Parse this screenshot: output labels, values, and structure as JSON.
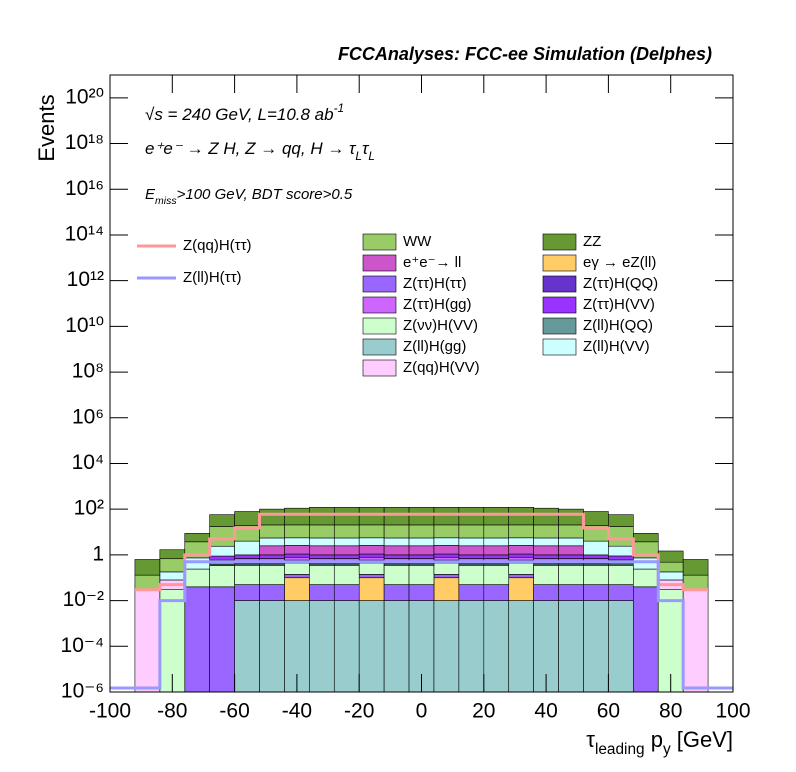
{
  "chart_data": {
    "type": "stacked_histogram",
    "title": "FCCAnalyses: FCC-ee Simulation (Delphes)",
    "annotations": [
      [
        {
          "text": "√s = 240 GeV, L=10.8 ab"
        },
        {
          "text": "-1",
          "style": "sup"
        }
      ],
      [
        {
          "text": "e⁺e⁻ → Z H, Z  → qq, H  → τ"
        },
        {
          "text": "L",
          "style": "sub"
        },
        {
          "text": "τ"
        },
        {
          "text": "L",
          "style": "sub"
        }
      ],
      [
        {
          "text": "E"
        },
        {
          "text": "miss",
          "style": "sub"
        },
        {
          "text": ">100 GeV, BDT score>0.5"
        }
      ]
    ],
    "x_label": [
      {
        "text": "τ"
      },
      {
        "text": "leading",
        "style": "sub"
      },
      {
        "text": " p"
      },
      {
        "text": "y",
        "style": "sub"
      },
      {
        "text": " [GeV]"
      }
    ],
    "y_label": "Events",
    "log_y": true,
    "bins": [
      -100,
      -92,
      -84,
      -76,
      -68,
      -60,
      -52,
      -44,
      -36,
      -28,
      -20,
      -12,
      -4,
      4,
      12,
      20,
      28,
      36,
      44,
      52,
      60,
      68,
      76,
      84,
      92,
      100
    ],
    "xlim": [
      -100,
      100
    ],
    "xticks": [
      -100,
      -80,
      -60,
      -40,
      -20,
      0,
      20,
      40,
      60,
      80,
      100
    ],
    "ylim": [
      1e-06,
      1e+21
    ],
    "yticks": [
      {
        "value": 1e-06,
        "label": "10⁻⁶"
      },
      {
        "value": 0.0001,
        "label": "10⁻⁴"
      },
      {
        "value": 0.01,
        "label": "10⁻²"
      },
      1,
      {
        "value": 100.0,
        "label": "10²"
      },
      {
        "value": 10000.0,
        "label": "10⁴"
      },
      {
        "value": 1000000.0,
        "label": "10⁶"
      },
      {
        "value": 100000000.0,
        "label": "10⁸"
      },
      {
        "value": 10000000000.0,
        "label": "10¹⁰"
      },
      {
        "value": 1000000000000.0,
        "label": "10¹²"
      },
      {
        "value": 100000000000000.0,
        "label": "10¹⁴"
      },
      {
        "value": 1e+16,
        "label": "10¹⁶"
      },
      {
        "value": 1e+18,
        "label": "10¹⁸"
      },
      {
        "value": 1e+20,
        "label": "10²⁰"
      }
    ],
    "series": [
      {
        "name": "Z(ll)H(gg)",
        "color": "#99cccc",
        "values": [
          0,
          0,
          0,
          0,
          0,
          0.01,
          0.01,
          0.01,
          0.01,
          0.01,
          0.01,
          0.01,
          0.01,
          0.01,
          0.01,
          0.01,
          0.01,
          0.01,
          0.01,
          0.01,
          0.01,
          0,
          0,
          0,
          0
        ]
      },
      {
        "name": "eγ → eZ(ll)",
        "color": "#ffcc66",
        "values": [
          0,
          0,
          0,
          0,
          0,
          0,
          0,
          0.09,
          0,
          0,
          0.09,
          0,
          0,
          0.09,
          0,
          0,
          0.09,
          0,
          0,
          0,
          0,
          0,
          0,
          0,
          0
        ]
      },
      {
        "name": "Z(ττ)H(ττ)",
        "color": "#9966ff",
        "values": [
          0,
          0,
          0,
          0.04,
          0.04,
          0.04,
          0.04,
          0.04,
          0.04,
          0.04,
          0.04,
          0.04,
          0.04,
          0.04,
          0.04,
          0.04,
          0.04,
          0.04,
          0.04,
          0.04,
          0.04,
          0.04,
          0,
          0,
          0
        ]
      },
      {
        "name": "Z(νν)H(VV)",
        "color": "#ccffcc",
        "values": [
          0,
          0,
          0.03,
          0.2,
          0.3,
          0.3,
          0.3,
          0.3,
          0.3,
          0.3,
          0.3,
          0.3,
          0.3,
          0.3,
          0.3,
          0.3,
          0.3,
          0.3,
          0.3,
          0.3,
          0.3,
          0.2,
          0.03,
          0,
          0
        ]
      },
      {
        "name": "Z(qq)H(VV)",
        "color": "#ffccff",
        "values": [
          0,
          0.03,
          0.05,
          0,
          0,
          0,
          0,
          0,
          0,
          0,
          0,
          0,
          0,
          0,
          0,
          0,
          0,
          0,
          0,
          0,
          0,
          0,
          0.05,
          0.03,
          0
        ]
      },
      {
        "name": "Z(ll)H(QQ)",
        "color": "#669999",
        "values": [
          0,
          0,
          0,
          0,
          0.05,
          0.05,
          0.05,
          0.05,
          0.05,
          0.05,
          0.05,
          0.05,
          0.05,
          0.05,
          0.05,
          0.05,
          0.05,
          0.05,
          0.05,
          0.05,
          0.05,
          0,
          0,
          0,
          0
        ]
      },
      {
        "name": "Z(ττ)H(QQ)",
        "color": "#6633cc",
        "values": [
          0,
          0,
          0,
          0,
          0,
          0.1,
          0.1,
          0.1,
          0.1,
          0.1,
          0.1,
          0.1,
          0.1,
          0.1,
          0.1,
          0.1,
          0.1,
          0.1,
          0.1,
          0.1,
          0,
          0,
          0,
          0,
          0
        ]
      },
      {
        "name": "Z(ττ)H(gg)",
        "color": "#cc66ff",
        "values": [
          0,
          0,
          0,
          0,
          0.2,
          0.2,
          0.2,
          0.2,
          0.2,
          0.2,
          0.2,
          0.2,
          0.2,
          0.2,
          0.2,
          0.2,
          0.2,
          0.2,
          0.2,
          0.2,
          0.2,
          0,
          0,
          0,
          0
        ]
      },
      {
        "name": "Z(ττ)H(VV)",
        "color": "#9933ff",
        "values": [
          0,
          0,
          0,
          0,
          0.3,
          0.3,
          0.3,
          0.3,
          0.3,
          0.3,
          0.3,
          0.3,
          0.3,
          0.3,
          0.3,
          0.3,
          0.3,
          0.3,
          0.3,
          0.3,
          0.3,
          0,
          0,
          0,
          0
        ]
      },
      {
        "name": "e⁺e⁻→ ll",
        "color": "#cc55cc",
        "values": [
          0,
          0,
          0,
          0,
          0,
          0,
          1.5,
          1.5,
          1.5,
          1.5,
          1.5,
          1.5,
          1.5,
          1.5,
          1.5,
          1.5,
          1.5,
          1.5,
          1.5,
          0,
          0,
          0,
          0,
          0,
          0
        ]
      },
      {
        "name": "Z(ll)H(VV)",
        "color": "#ccffff",
        "values": [
          0,
          0,
          0.1,
          0.5,
          1.5,
          3,
          3,
          3,
          3,
          3,
          3,
          3,
          3,
          3,
          3,
          3,
          3,
          3,
          3,
          3,
          1.5,
          0.5,
          0.1,
          0,
          0
        ]
      },
      {
        "name": "WW",
        "color": "#99cc66",
        "values": [
          0,
          0.1,
          0.5,
          3,
          15,
          15,
          15,
          15,
          15,
          15,
          15,
          15,
          15,
          15,
          15,
          15,
          15,
          15,
          15,
          15,
          15,
          3,
          0.3,
          0.1,
          0
        ]
      },
      {
        "name": "ZZ",
        "color": "#669933",
        "values": [
          0,
          0.5,
          1,
          5,
          40,
          60,
          80,
          90,
          100,
          100,
          100,
          100,
          100,
          100,
          100,
          100,
          100,
          90,
          80,
          60,
          40,
          5,
          1,
          0.5,
          0
        ]
      }
    ],
    "lines": [
      {
        "name": "Z(qq)H(ττ)",
        "color": "#ff9999",
        "values": [
          null,
          0.03,
          0.05,
          1,
          5,
          15,
          60,
          60,
          60,
          60,
          60,
          60,
          60,
          60,
          60,
          60,
          60,
          60,
          60,
          15,
          5,
          1,
          0.05,
          0.03,
          null
        ]
      },
      {
        "name": "Z(ll)H(ττ)",
        "color": "#9999ff",
        "values": [
          1.5e-06,
          1.5e-06,
          0.01,
          0.5,
          0.5,
          0.5,
          0.5,
          0.5,
          0.5,
          0.5,
          0.5,
          0.5,
          0.5,
          0.5,
          0.5,
          0.5,
          0.5,
          0.5,
          0.5,
          0.5,
          0.5,
          0.5,
          0.01,
          1.5e-06,
          1.5e-06
        ]
      }
    ]
  }
}
